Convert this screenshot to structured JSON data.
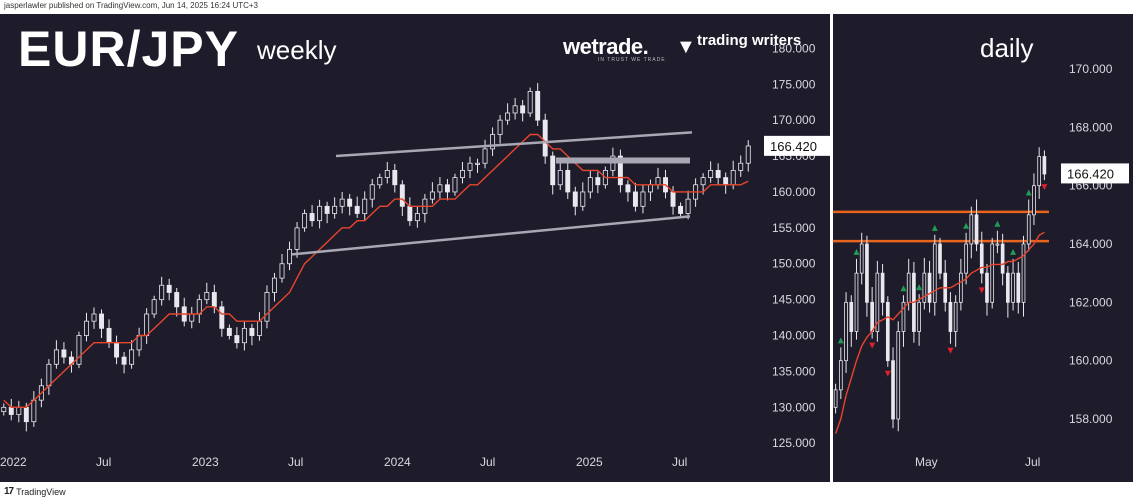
{
  "header": {
    "text": "jasperlawler published on TradingView.com, Jun 14, 2025 16:24 UTC+3"
  },
  "footer": {
    "logo": "17",
    "text": "TradingView"
  },
  "weekly": {
    "title": "EUR/JPY",
    "subtitle": "weekly",
    "brand1": "wetrade.",
    "brand1_tagline": "IN TRUST WE TRADE",
    "brand2": "trading writers"
  },
  "daily": {
    "title": "daily"
  },
  "chart_data": [
    {
      "type": "candlestick",
      "title": "EUR/JPY weekly",
      "y_ticks": [
        "180.000",
        "175.000",
        "170.000",
        "165.000",
        "160.000",
        "155.000",
        "150.000",
        "145.000",
        "140.000",
        "135.000",
        "130.000",
        "125.000"
      ],
      "ylim": [
        123.5,
        182
      ],
      "x_ticks": [
        "2022",
        "Jul",
        "2023",
        "Jul",
        "2024",
        "Jul",
        "2025",
        "Jul"
      ],
      "last_price": "166.420",
      "closes_approx": [
        130,
        129,
        130,
        128,
        131,
        133,
        136,
        138,
        137,
        136,
        140,
        142,
        143,
        141,
        139,
        137,
        136,
        138,
        140,
        143,
        145,
        147,
        146,
        144,
        142,
        143,
        145,
        146,
        144,
        141,
        140,
        139,
        141,
        140,
        142,
        146,
        148,
        150,
        152,
        155,
        157,
        156,
        158,
        157,
        158,
        159,
        158,
        157,
        159,
        161,
        162,
        163,
        161,
        158,
        156,
        157,
        159,
        160,
        161,
        160,
        162,
        163,
        164,
        164,
        166,
        168,
        170,
        171,
        172,
        171,
        174,
        170,
        165,
        161,
        163,
        160,
        158,
        160,
        162,
        161,
        163,
        165,
        161,
        160,
        158,
        160,
        161,
        162,
        160,
        158,
        157,
        159,
        161,
        162,
        163,
        162,
        161,
        163,
        164,
        166.4
      ],
      "ma_approx": [
        131,
        130,
        130,
        130,
        131,
        132,
        133,
        134,
        135,
        136,
        137,
        138,
        139,
        139,
        139,
        139,
        139,
        139,
        140,
        140,
        141,
        142,
        143,
        143,
        143,
        143,
        143,
        144,
        144,
        143,
        143,
        142,
        142,
        142,
        142,
        143,
        144,
        145,
        146,
        148,
        150,
        151,
        152,
        153,
        154,
        155,
        155,
        156,
        156,
        157,
        158,
        158,
        159,
        159,
        158,
        158,
        158,
        158,
        159,
        159,
        159,
        160,
        161,
        161,
        162,
        163,
        164,
        165,
        166,
        167,
        168,
        168,
        167,
        166,
        166,
        165,
        164,
        163,
        163,
        163,
        162,
        162,
        162,
        162,
        161,
        161,
        161,
        161,
        161,
        160,
        160,
        160,
        160,
        160,
        161,
        161,
        161,
        161,
        161,
        161.5
      ],
      "annotations": [
        {
          "type": "channel-line",
          "from": [
            "2023-10",
            165.0
          ],
          "to": [
            "2025-07",
            168.3
          ]
        },
        {
          "type": "channel-line",
          "from": [
            "2023-07",
            151.3
          ],
          "to": [
            "2025-07",
            156.6
          ]
        },
        {
          "type": "resistance-zone",
          "level": 164.5,
          "from": "2024-11",
          "to": "2025-07"
        }
      ]
    },
    {
      "type": "candlestick",
      "title": "daily",
      "y_ticks": [
        "170.000",
        "168.000",
        "166.000",
        "164.000",
        "162.000",
        "160.000",
        "158.000"
      ],
      "ylim": [
        156.8,
        171.2
      ],
      "x_ticks": [
        "May",
        "Jul"
      ],
      "last_price": "166.420",
      "closes_approx": [
        159,
        160,
        162,
        161,
        163,
        164,
        162,
        161,
        163,
        162,
        160,
        158,
        161,
        162,
        163,
        161,
        162,
        163,
        162,
        164,
        163,
        162,
        161,
        162,
        163,
        164,
        165,
        164,
        163,
        162,
        164,
        164,
        163,
        162,
        163,
        162,
        164,
        165,
        166,
        167,
        166.4
      ],
      "ma_approx": [
        157.5,
        158,
        158.8,
        159.4,
        160,
        160.5,
        160.8,
        161,
        161.3,
        161.4,
        161.5,
        161.4,
        161.6,
        161.8,
        162,
        162,
        162.1,
        162.2,
        162.3,
        162.4,
        162.5,
        162.5,
        162.5,
        162.6,
        162.7,
        162.8,
        163,
        163.1,
        163.2,
        163.2,
        163.3,
        163.3,
        163.3,
        163.4,
        163.4,
        163.5,
        163.6,
        163.8,
        164,
        164.3,
        164.4
      ],
      "annotations": [
        {
          "type": "horizontal-line",
          "level": 164.1,
          "color": "#e8641c"
        },
        {
          "type": "horizontal-line",
          "level": 165.1,
          "color": "#e8641c"
        }
      ]
    }
  ],
  "colors": {
    "background": "#1e1c2b",
    "candle": "#e8e8ee",
    "ma": "#e8452c",
    "channel": "#a8a8b4",
    "zone": "#a8a8b4",
    "level": "#e8641c",
    "up_marker": "#1f9d55",
    "down_marker": "#e0202a"
  }
}
